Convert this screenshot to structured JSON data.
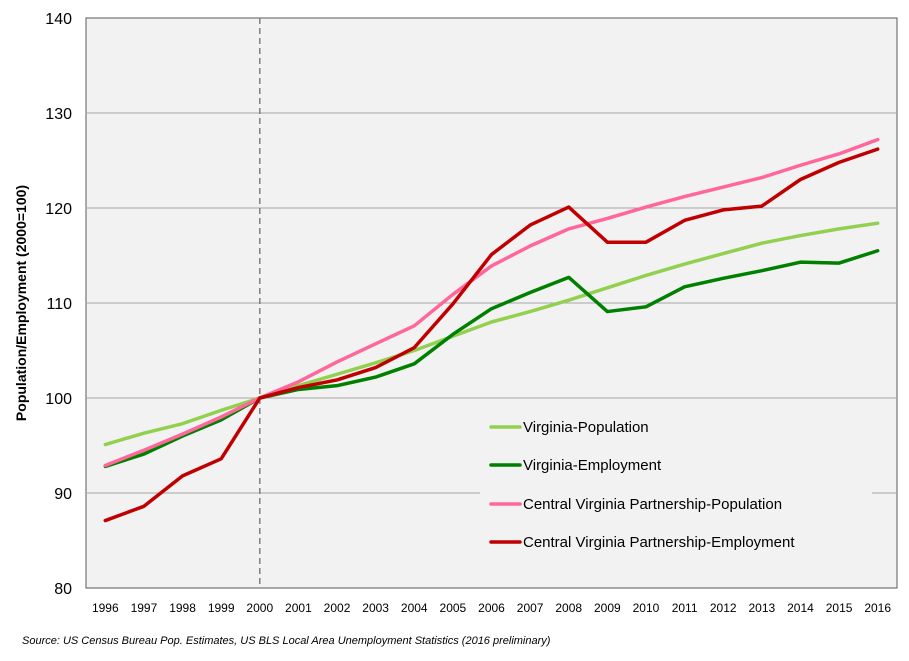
{
  "chart_data": {
    "type": "line",
    "title": "",
    "xlabel": "",
    "ylabel": "Population/Employment (2000=100)",
    "ylim": [
      80,
      140
    ],
    "yticks": [
      80,
      90,
      100,
      110,
      120,
      130,
      140
    ],
    "grid": true,
    "reference_line_x": 2000,
    "legend_position": "bottom-right",
    "x": [
      1996,
      1997,
      1998,
      1999,
      2000,
      2001,
      2002,
      2003,
      2004,
      2005,
      2006,
      2007,
      2008,
      2009,
      2010,
      2011,
      2012,
      2013,
      2014,
      2015,
      2016
    ],
    "series": [
      {
        "name": "Virginia-Population",
        "color": "#92d050",
        "values": [
          95.1,
          96.3,
          97.3,
          98.7,
          100.0,
          101.3,
          102.5,
          103.7,
          105.0,
          106.5,
          108.0,
          109.1,
          110.3,
          111.6,
          112.9,
          114.1,
          115.2,
          116.3,
          117.1,
          117.8,
          118.4
        ]
      },
      {
        "name": "Virginia-Employment",
        "color": "#008000",
        "values": [
          92.8,
          94.1,
          96.0,
          97.7,
          100.0,
          100.9,
          101.3,
          102.2,
          103.6,
          106.7,
          109.4,
          111.1,
          112.7,
          109.1,
          109.6,
          111.7,
          112.6,
          113.4,
          114.3,
          114.2,
          115.5
        ]
      },
      {
        "name": "Central Virginia Partnership-Population",
        "color": "#ff6699",
        "values": [
          92.9,
          94.5,
          96.2,
          98.0,
          100.0,
          101.7,
          103.8,
          105.7,
          107.6,
          110.9,
          113.9,
          116.0,
          117.8,
          118.9,
          120.1,
          121.2,
          122.2,
          123.2,
          124.5,
          125.7,
          127.2
        ]
      },
      {
        "name": "Central Virginia Partnership-Employment",
        "color": "#c00000",
        "values": [
          87.1,
          88.6,
          91.8,
          93.6,
          100.0,
          101.1,
          101.9,
          103.2,
          105.3,
          109.9,
          115.1,
          118.2,
          120.1,
          116.4,
          116.4,
          118.7,
          119.8,
          120.2,
          123.0,
          124.8,
          126.2
        ]
      }
    ],
    "source_note": "Source: US Census Bureau Pop. Estimates, US BLS Local Area Unemployment Statistics (2016 preliminary)"
  }
}
